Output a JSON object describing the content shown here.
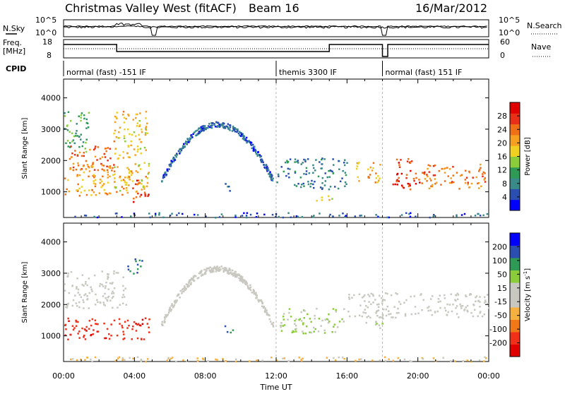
{
  "header": {
    "station": "Christmas Valley West (fitACF)",
    "beam": "Beam 16",
    "date": "16/Mar/2012"
  },
  "noise_panel": {
    "left_label": "N.Sky",
    "right_label": "N.Search",
    "left_ticks": [
      "10^5",
      "10^0"
    ],
    "right_ticks": [
      "10^5",
      "10^0"
    ]
  },
  "freq_panel": {
    "left_label_1": "Freq.",
    "left_label_2": "[MHz]",
    "right_label": "Nave",
    "left_ticks": [
      "18",
      "8"
    ],
    "right_ticks": [
      "60",
      "0"
    ]
  },
  "cpid": {
    "label": "CPID",
    "segments": [
      {
        "start_hour": 0.0,
        "end_hour": 12.0,
        "text": "normal (fast) -151 IF"
      },
      {
        "start_hour": 12.0,
        "end_hour": 18.0,
        "text": "themis 3300 IF"
      },
      {
        "start_hour": 18.0,
        "end_hour": 24.0,
        "text": "normal (fast) 151 IF"
      }
    ]
  },
  "x_axis": {
    "label": "Time UT",
    "ticks": [
      "00:00",
      "04:00",
      "08:00",
      "12:00",
      "16:00",
      "20:00",
      "00:00"
    ]
  },
  "chart_data": [
    {
      "type": "heatmap",
      "title": "",
      "xlabel": "",
      "ylabel": "Slant Range [km]",
      "xlim_hours": [
        0,
        24
      ],
      "ylim": [
        180,
        4600
      ],
      "y_ticks": [
        1000,
        2000,
        3000,
        4000
      ],
      "colorbar": {
        "label": "Power [dB]",
        "ticks": [
          "4",
          "8",
          "12",
          "16",
          "20",
          "24",
          "28"
        ],
        "colors": [
          "#0000ff",
          "#2a4fb0",
          "#3a8a8a",
          "#2f9a55",
          "#8bcc3b",
          "#f0d020",
          "#f5a020",
          "#f07018",
          "#e83018",
          "#e00000"
        ]
      },
      "regions": [
        {
          "t0": 0.0,
          "t1": 1.4,
          "r0": 2200,
          "r1": 3600,
          "value": 12
        },
        {
          "t0": 0.3,
          "t1": 3.0,
          "r0": 1700,
          "r1": 2500,
          "value": 26
        },
        {
          "t0": 0.0,
          "t1": 3.8,
          "r0": 900,
          "r1": 1900,
          "value": 22
        },
        {
          "t0": 2.8,
          "t1": 4.8,
          "r0": 1000,
          "r1": 3600,
          "value": 20
        },
        {
          "t0": 3.8,
          "t1": 4.8,
          "r0": 700,
          "r1": 1400,
          "value": 28
        },
        {
          "t0": 5.5,
          "t1": 11.8,
          "r0": 1400,
          "r1": 3200,
          "value": 6,
          "arc": true
        },
        {
          "t0": 9.0,
          "t1": 9.6,
          "r0": 1050,
          "r1": 1350,
          "value": 8
        },
        {
          "t0": 12.0,
          "t1": 16.0,
          "r0": 1100,
          "r1": 2100,
          "value": 8
        },
        {
          "t0": 14.0,
          "t1": 15.2,
          "r0": 700,
          "r1": 900,
          "value": 20
        },
        {
          "t0": 16.5,
          "t1": 17.9,
          "r0": 1300,
          "r1": 2000,
          "value": 22
        },
        {
          "t0": 18.5,
          "t1": 20.2,
          "r0": 1100,
          "r1": 2100,
          "value": 28
        },
        {
          "t0": 20.2,
          "t1": 23.9,
          "r0": 1100,
          "r1": 1900,
          "value": 24
        },
        {
          "t0": 0.0,
          "t1": 24.0,
          "r0": 180,
          "r1": 350,
          "value": 6
        }
      ]
    },
    {
      "type": "heatmap",
      "title": "",
      "xlabel": "Time UT",
      "ylabel": "Slant Range [km]",
      "xlim_hours": [
        0,
        24
      ],
      "ylim": [
        180,
        4600
      ],
      "y_ticks": [
        1000,
        2000,
        3000,
        4000
      ],
      "colorbar": {
        "label": "Velocity [m s-1]",
        "label_main": "Velocity [m s",
        "label_exp": "-1",
        "label_end": "]",
        "ticks": [
          "-200",
          "-100",
          "-50",
          "-15",
          "15",
          "50",
          "100",
          "200"
        ],
        "colors": [
          "#e00000",
          "#f03018",
          "#f07818",
          "#f5b040",
          "#c8c8c0",
          "#c8c8c0",
          "#8bcc3b",
          "#2f9a55",
          "#2a4fb0",
          "#0000ff"
        ]
      },
      "regions": [
        {
          "t0": 0.0,
          "t1": 3.5,
          "r0": 1900,
          "r1": 3100,
          "value": 0
        },
        {
          "t0": 0.0,
          "t1": 4.8,
          "r0": 900,
          "r1": 1600,
          "value": -200
        },
        {
          "t0": 3.6,
          "t1": 4.6,
          "r0": 3000,
          "r1": 3500,
          "value": 180
        },
        {
          "t0": 5.5,
          "t1": 11.8,
          "r0": 1400,
          "r1": 3200,
          "value": 0,
          "arc": true
        },
        {
          "t0": 9.0,
          "t1": 9.6,
          "r0": 1050,
          "r1": 1350,
          "value": 180
        },
        {
          "t0": 12.2,
          "t1": 15.8,
          "r0": 1100,
          "r1": 1900,
          "value": 60
        },
        {
          "t0": 16.0,
          "t1": 24.0,
          "r0": 1600,
          "r1": 2400,
          "value": 0
        },
        {
          "t0": 17.0,
          "t1": 18.0,
          "r0": 1200,
          "r1": 1800,
          "value": 40
        },
        {
          "t0": 0.0,
          "t1": 24.0,
          "r0": 180,
          "r1": 350,
          "value": -60
        }
      ]
    }
  ]
}
